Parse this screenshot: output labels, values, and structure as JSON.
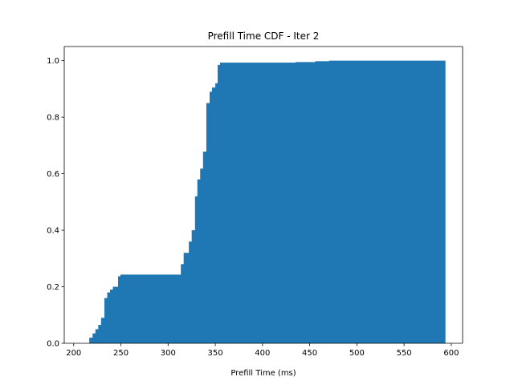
{
  "chart_data": {
    "type": "bar",
    "subtype": "cumulative-histogram",
    "title": "Prefill Time CDF - Iter 2",
    "xlabel": "Prefill Time (ms)",
    "ylabel": "",
    "xlim": [
      190,
      612
    ],
    "ylim": [
      0,
      1.05
    ],
    "xticks": [
      200,
      250,
      300,
      350,
      400,
      450,
      500,
      550,
      600
    ],
    "yticks": [
      0.0,
      0.2,
      0.4,
      0.6,
      0.8,
      1.0
    ],
    "grid": false,
    "legend": "none",
    "bar_color": "#1f77b4",
    "x_start": 216.5,
    "x_end": 593.5,
    "steps": [
      {
        "x": 216.5,
        "y": 0.02
      },
      {
        "x": 220.0,
        "y": 0.035
      },
      {
        "x": 223.0,
        "y": 0.05
      },
      {
        "x": 226.0,
        "y": 0.065
      },
      {
        "x": 229.0,
        "y": 0.09
      },
      {
        "x": 232.5,
        "y": 0.16
      },
      {
        "x": 235.5,
        "y": 0.18
      },
      {
        "x": 238.5,
        "y": 0.19
      },
      {
        "x": 241.5,
        "y": 0.2
      },
      {
        "x": 247.0,
        "y": 0.237
      },
      {
        "x": 249.5,
        "y": 0.243
      },
      {
        "x": 313.5,
        "y": 0.28
      },
      {
        "x": 316.5,
        "y": 0.32
      },
      {
        "x": 322.0,
        "y": 0.36
      },
      {
        "x": 325.0,
        "y": 0.4
      },
      {
        "x": 328.5,
        "y": 0.52
      },
      {
        "x": 331.0,
        "y": 0.58
      },
      {
        "x": 334.0,
        "y": 0.618
      },
      {
        "x": 337.0,
        "y": 0.678
      },
      {
        "x": 340.5,
        "y": 0.85
      },
      {
        "x": 344.0,
        "y": 0.89
      },
      {
        "x": 346.5,
        "y": 0.905
      },
      {
        "x": 350.0,
        "y": 0.92
      },
      {
        "x": 352.5,
        "y": 0.985
      },
      {
        "x": 355.0,
        "y": 0.993
      },
      {
        "x": 435.0,
        "y": 0.995
      },
      {
        "x": 456.0,
        "y": 0.998
      },
      {
        "x": 470.5,
        "y": 1.0
      }
    ]
  }
}
